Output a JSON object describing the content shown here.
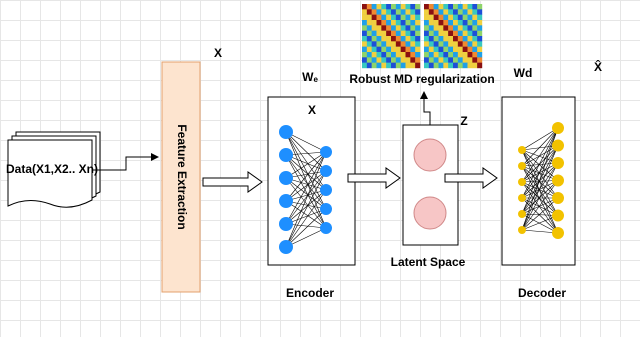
{
  "input": {
    "label": "Data(X1,X2.. Xn)"
  },
  "feature_extraction": {
    "label": "Feature Extraction",
    "output": "X"
  },
  "encoder": {
    "weight": {
      "base": "W",
      "sub": "e"
    },
    "input": "X",
    "label": "Encoder"
  },
  "regularization": {
    "label": "Robust MD regularization"
  },
  "latent": {
    "symbol": "Z",
    "label": "Latent Space"
  },
  "decoder": {
    "weight": "Wd",
    "output": "X̂",
    "label": "Decoder"
  }
}
